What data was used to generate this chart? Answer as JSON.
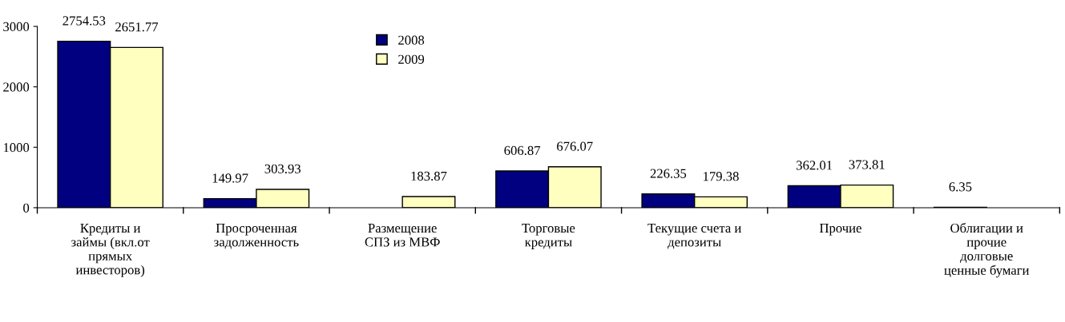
{
  "chart_data": {
    "type": "bar",
    "categories": [
      "Кредиты и\nзаймы (вкл.от\nпрямых\nинвесторов)",
      "Просроченная\nзадолженность",
      "Размещение\nСПЗ из МВФ",
      "Торговые\nкредиты",
      "Текущие счета и\nдепозиты",
      "Прочие",
      "Облигации и\nпрочие\nдолговые\nценные бумаги"
    ],
    "series": [
      {
        "name": "2008",
        "color": "#000080",
        "values": [
          2754.53,
          149.97,
          null,
          606.87,
          226.35,
          362.01,
          6.35
        ]
      },
      {
        "name": "2009",
        "color": "#ffffc0",
        "values": [
          2651.77,
          303.93,
          183.87,
          676.07,
          179.38,
          373.81,
          null
        ]
      }
    ],
    "ylim": [
      0,
      3000
    ],
    "yticks": [
      0,
      1000,
      2000,
      3000
    ],
    "data_labels": true,
    "grid": false,
    "legend": "top"
  }
}
